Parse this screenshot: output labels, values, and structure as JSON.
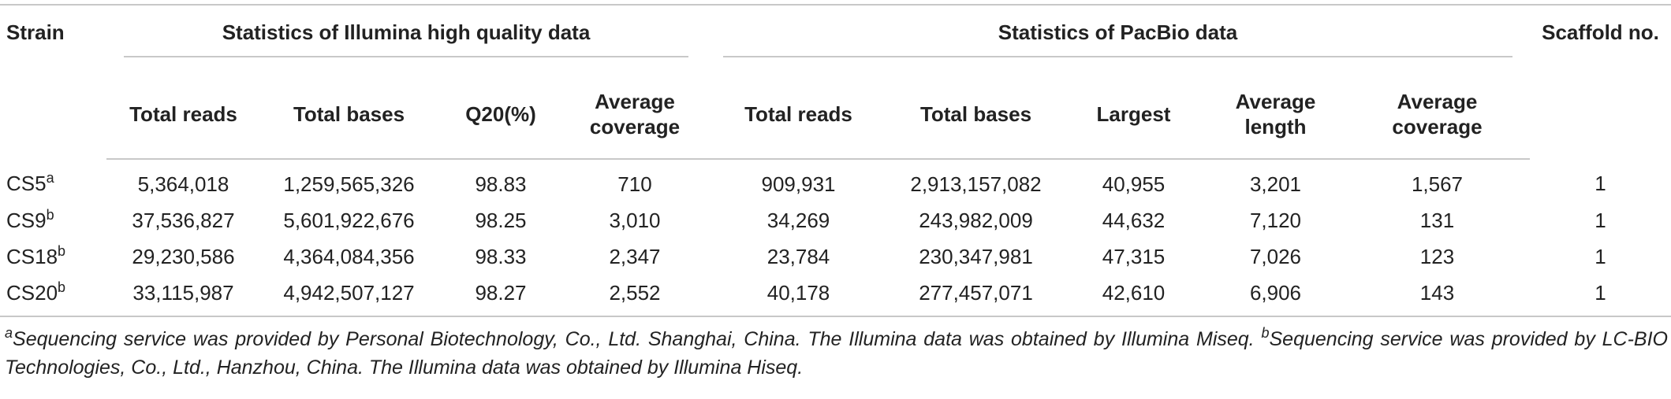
{
  "table": {
    "columns": {
      "strain": "Strain",
      "scaffold": "Scaffold no."
    },
    "groups": [
      {
        "title": "Statistics of Illumina high quality data",
        "subheaders": [
          "Total reads",
          "Total bases",
          "Q20(%)",
          "Average coverage"
        ]
      },
      {
        "title": "Statistics of PacBio data",
        "subheaders": [
          "Total reads",
          "Total bases",
          "Largest",
          "Average length",
          "Average coverage"
        ]
      }
    ],
    "rows": [
      {
        "strain": "CS5",
        "note": "a",
        "cells": [
          "5,364,018",
          "1,259,565,326",
          "98.83",
          "710",
          "909,931",
          "2,913,157,082",
          "40,955",
          "3,201",
          "1,567",
          "1"
        ]
      },
      {
        "strain": "CS9",
        "note": "b",
        "cells": [
          "37,536,827",
          "5,601,922,676",
          "98.25",
          "3,010",
          "34,269",
          "243,982,009",
          "44,632",
          "7,120",
          "131",
          "1"
        ]
      },
      {
        "strain": "CS18",
        "note": "b",
        "cells": [
          "29,230,586",
          "4,364,084,356",
          "98.33",
          "2,347",
          "23,784",
          "230,347,981",
          "47,315",
          "7,026",
          "123",
          "1"
        ]
      },
      {
        "strain": "CS20",
        "note": "b",
        "cells": [
          "33,115,987",
          "4,942,507,127",
          "98.27",
          "2,552",
          "40,178",
          "277,457,071",
          "42,610",
          "6,906",
          "143",
          "1"
        ]
      }
    ],
    "footnotes": [
      {
        "mark": "a",
        "text": "Sequencing service was provided by Personal Biotechnology, Co., Ltd. Shanghai, China. The Illumina data was obtained by Illumina Miseq."
      },
      {
        "mark": "b",
        "text": "Sequencing service was provided by LC-BIO Technologies, Co., Ltd., Hanzhou, China. The Illumina data was obtained by Illumina Hiseq."
      }
    ]
  }
}
